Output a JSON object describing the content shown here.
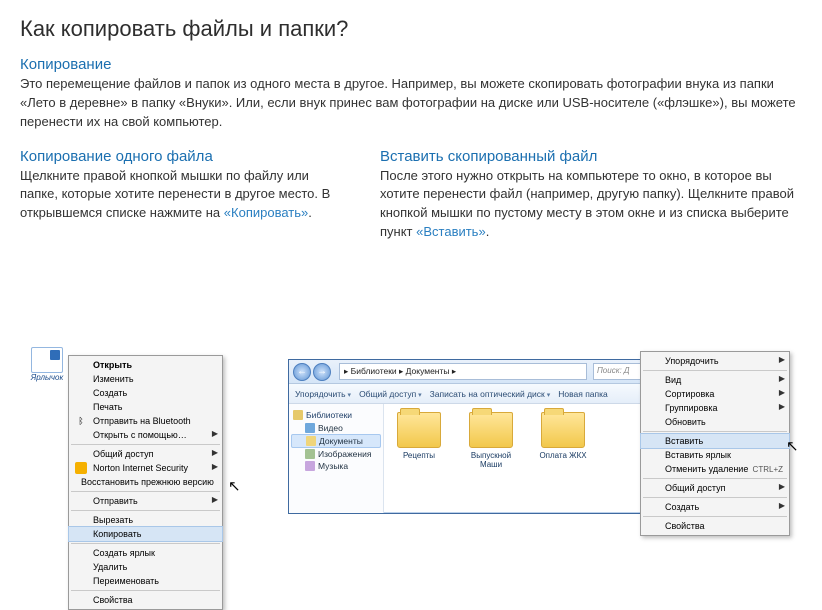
{
  "page": {
    "title": "Как копировать файлы и папки?",
    "accent_color": "#1b6fb0",
    "text_color": "#333333",
    "link_color": "#2a7fc1"
  },
  "intro": {
    "heading": "Копирование",
    "text": "Это перемещение файлов и папок из одного места в другое. Например, вы можете скопировать фотографии внука из папки «Лето в деревне» в папку «Внуки». Или, если внук принес вам фотографии на диске или USB-носителе («флэшке»), вы можете перенести их на свой компьютер."
  },
  "left": {
    "heading": "Копирование одного файла",
    "text_before": "Щелкните правой кнопкой мышки по файлу или папке, которые хотите перенести в другое место. В открывшемся списке нажмите на ",
    "link": "«Копировать»",
    "text_after": "."
  },
  "right": {
    "heading": "Вставить скопированный файл",
    "text_before": "После этого нужно открыть на компьютере то окно, в которое вы хотите перенести файл (например, другую папку). Щелкните правой кнопкой мышки по пустому месту в этом окне и из списка выберите пункт ",
    "link": "«Вставить»",
    "text_after": "."
  },
  "desktop_icon_label": "Ярлычок",
  "menu1": {
    "items": [
      {
        "label": "Открыть",
        "bold": true,
        "arrow": false
      },
      {
        "label": "Изменить"
      },
      {
        "label": "Создать"
      },
      {
        "label": "Печать"
      },
      {
        "label": "Отправить на Bluetooth",
        "icon": "bt"
      },
      {
        "label": "Открыть с помощью…",
        "arrow": true
      },
      {
        "sep": true
      },
      {
        "label": "Общий доступ",
        "arrow": true
      },
      {
        "label": "Norton Internet Security",
        "icon": "norton",
        "arrow": true
      },
      {
        "label": "Восстановить прежнюю версию"
      },
      {
        "sep": true
      },
      {
        "label": "Отправить",
        "arrow": true
      },
      {
        "sep": true
      },
      {
        "label": "Вырезать"
      },
      {
        "label": "Копировать",
        "highlight": true
      },
      {
        "sep": true
      },
      {
        "label": "Создать ярлык"
      },
      {
        "label": "Удалить"
      },
      {
        "label": "Переименовать"
      },
      {
        "sep": true
      },
      {
        "label": "Свойства"
      }
    ]
  },
  "explorer": {
    "back_icon": "←",
    "fwd_icon": "→",
    "address": "▸ Библиотеки ▸ Документы ▸",
    "search_placeholder": "Поиск: Д",
    "toolbar": [
      "Упорядочить",
      "Общий доступ",
      "Записать на оптический диск",
      "Новая папка"
    ],
    "sidebar": {
      "group": "Библиотеки",
      "items": [
        {
          "label": "Видео",
          "cls": "si-vid"
        },
        {
          "label": "Документы",
          "cls": "si-doc",
          "active": true
        },
        {
          "label": "Изображения",
          "cls": "si-img"
        },
        {
          "label": "Музыка",
          "cls": "si-mus"
        }
      ]
    },
    "files": [
      {
        "name": "Рецепты"
      },
      {
        "name": "Выпускной Маши"
      },
      {
        "name": "Оплата ЖКХ"
      }
    ]
  },
  "menu2": {
    "items": [
      {
        "label": "Упорядочить",
        "arrow": true
      },
      {
        "sep": true
      },
      {
        "label": "Вид",
        "arrow": true
      },
      {
        "label": "Сортировка",
        "arrow": true
      },
      {
        "label": "Группировка",
        "arrow": true
      },
      {
        "label": "Обновить"
      },
      {
        "sep": true
      },
      {
        "label": "Вставить",
        "highlight": true
      },
      {
        "label": "Вставить ярлык"
      },
      {
        "label": "Отменить удаление",
        "shortcut": "CTRL+Z"
      },
      {
        "sep": true
      },
      {
        "label": "Общий доступ",
        "arrow": true
      },
      {
        "sep": true
      },
      {
        "label": "Создать",
        "arrow": true
      },
      {
        "sep": true
      },
      {
        "label": "Свойства"
      }
    ]
  }
}
